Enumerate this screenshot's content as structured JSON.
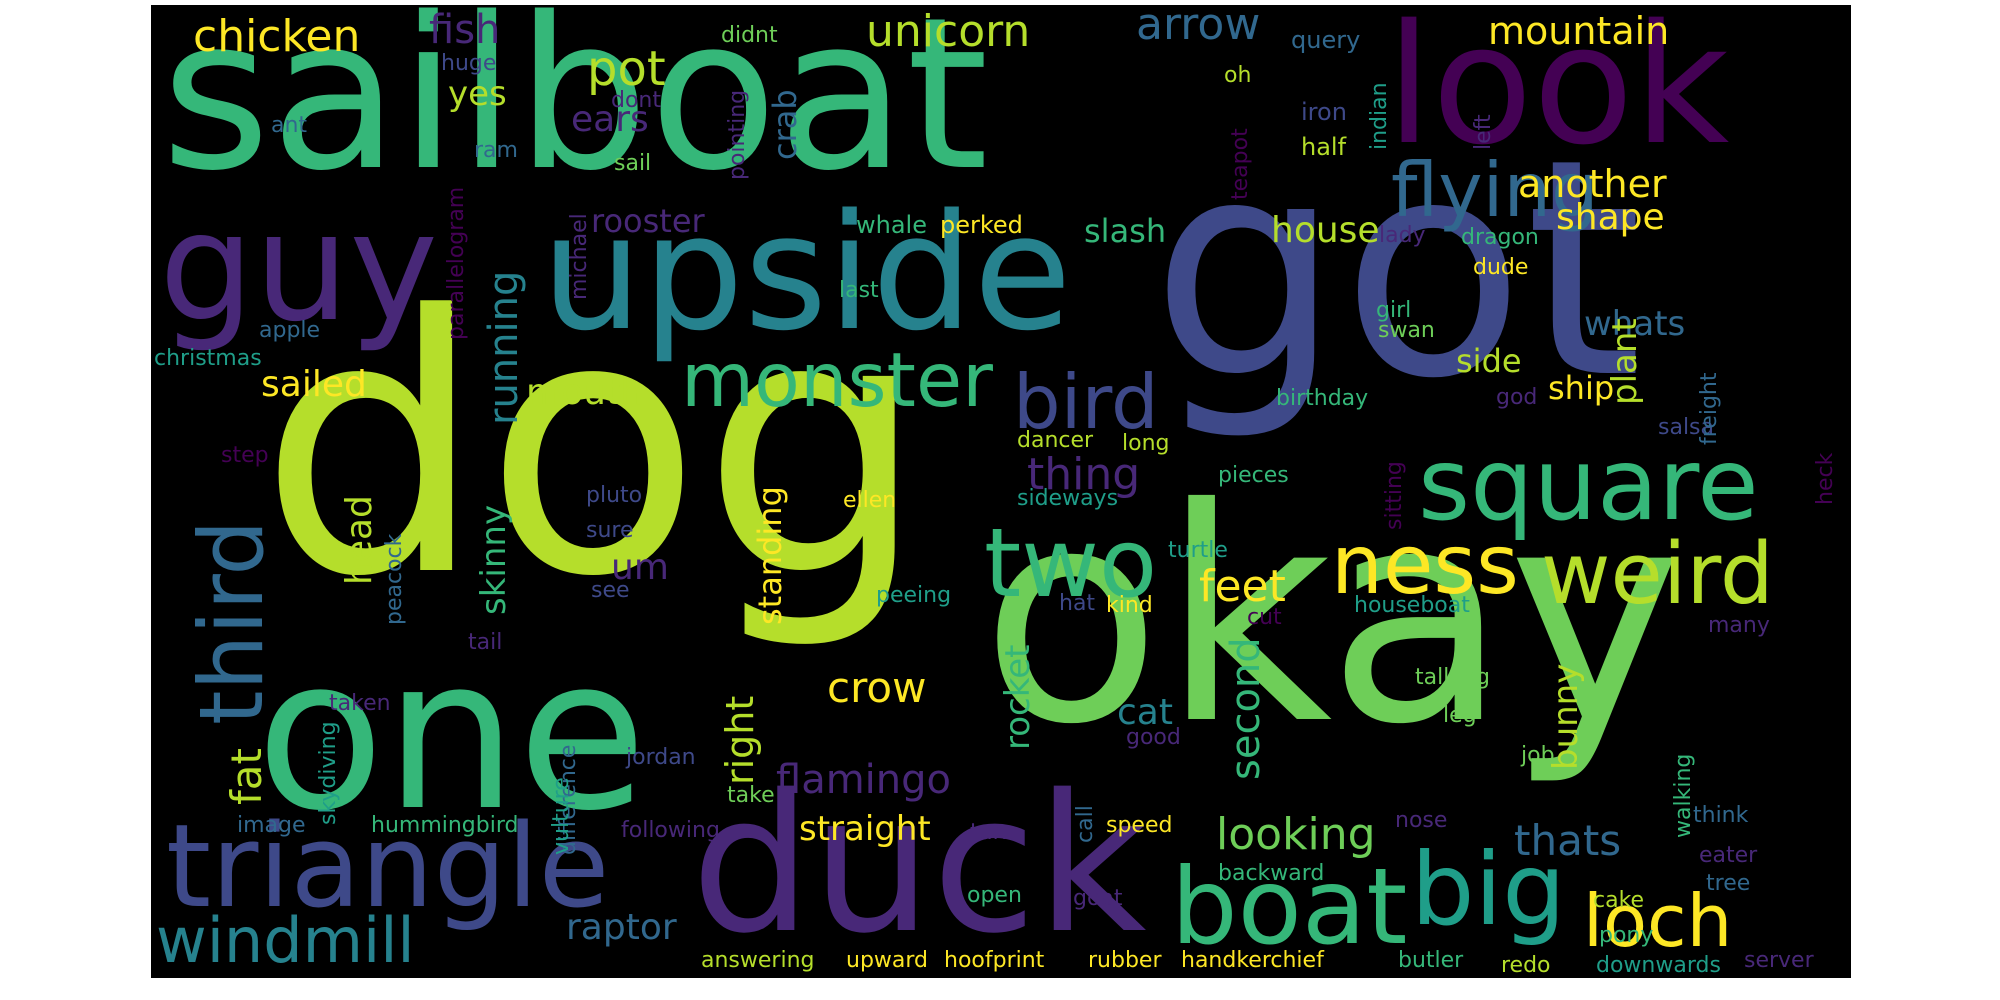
{
  "palette": {
    "yellow": "#fde725",
    "lime": "#b5de2b",
    "green": "#6ece58",
    "sea": "#35b779",
    "teal": "#1f9e89",
    "cyan": "#26828e",
    "blue": "#31688e",
    "indigo": "#3e4989",
    "violet": "#482878",
    "purple": "#440154"
  },
  "words": {
    "sailboat": "sailboat",
    "look": "look",
    "got": "got",
    "dog": "dog",
    "okay": "okay",
    "one": "one",
    "duck": "duck",
    "upside": "upside",
    "guy": "guy",
    "triangle": "triangle",
    "boat": "boat",
    "big": "big",
    "square": "square",
    "two": "two",
    "ness": "ness",
    "weird": "weird",
    "monster": "monster",
    "bird": "bird",
    "flying": "flying",
    "third": "third",
    "windmill": "windmill",
    "loch": "loch",
    "chicken": "chicken",
    "fish": "fish",
    "unicorn": "unicorn",
    "arrow": "arrow",
    "mountain": "mountain",
    "pot": "pot",
    "yes": "yes",
    "ears": "ears",
    "crab": "crab",
    "another": "another",
    "shape": "shape",
    "rooster": "rooster",
    "slash": "slash",
    "house": "house",
    "running": "running",
    "mouth": "mouth",
    "sailed": "sailed",
    "whats": "whats",
    "side": "side",
    "plant": "plant",
    "ship": "ship",
    "thing": "thing",
    "head": "head",
    "skinny": "skinny",
    "standing": "standing",
    "um": "um",
    "feet": "feet",
    "second": "second",
    "fat": "fat",
    "right": "right",
    "rocket": "rocket",
    "crow": "crow",
    "cat": "cat",
    "flamingo": "flamingo",
    "straight": "straight",
    "looking": "looking",
    "thats": "thats",
    "bunny": "bunny",
    "raptor": "raptor",
    "whale": "whale",
    "perked": "perked",
    "query": "query",
    "indian": "indian",
    "left": "left",
    "iron": "iron",
    "half": "half",
    "oh": "oh",
    "didnt": "didnt",
    "dont": "dont",
    "huge": "huge",
    "ant": "ant",
    "ram": "ram",
    "sail": "sail",
    "pointing": "pointing",
    "teapot": "teapot",
    "parallelogram": "parallelogram",
    "michael": "michael",
    "apple": "apple",
    "christmas": "christmas",
    "step": "step",
    "lady": "lady",
    "dragon": "dragon",
    "dude": "dude",
    "girl": "girl",
    "swan": "swan",
    "last": "last",
    "birthday": "birthday",
    "god": "god",
    "salsa": "salsa",
    "freight": "freight",
    "dancer": "dancer",
    "long": "long",
    "heck": "heck",
    "pluto": "pluto",
    "ellen": "ellen",
    "sideways": "sideways",
    "pieces": "pieces",
    "sitting": "sitting",
    "sure": "sure",
    "peacock": "peacock",
    "see": "see",
    "turtle": "turtle",
    "peeing": "peeing",
    "hat": "hat",
    "kind": "kind",
    "cut": "cut",
    "houseboat": "houseboat",
    "tail": "tail",
    "many": "many",
    "talking": "talking",
    "skydiving": "skydiving",
    "taken": "taken",
    "difference": "difference",
    "good": "good",
    "leg": "leg",
    "jordan": "jordan",
    "job": "job",
    "take": "take",
    "image": "image",
    "hummingbird": "hummingbird",
    "vulture": "vulture",
    "following": "following",
    "turn": "turn",
    "call": "call",
    "speed": "speed",
    "nose": "nose",
    "walking": "walking",
    "think": "think",
    "eater": "eater",
    "backward": "backward",
    "open": "open",
    "goat": "goat",
    "cake": "cake",
    "tree": "tree",
    "pony": "pony",
    "answering": "answering",
    "upward": "upward",
    "hoofprint": "hoofprint",
    "rubber": "rubber",
    "handkerchief": "handkerchief",
    "butler": "butler",
    "redo": "redo",
    "downwards": "downwards",
    "server": "server"
  }
}
